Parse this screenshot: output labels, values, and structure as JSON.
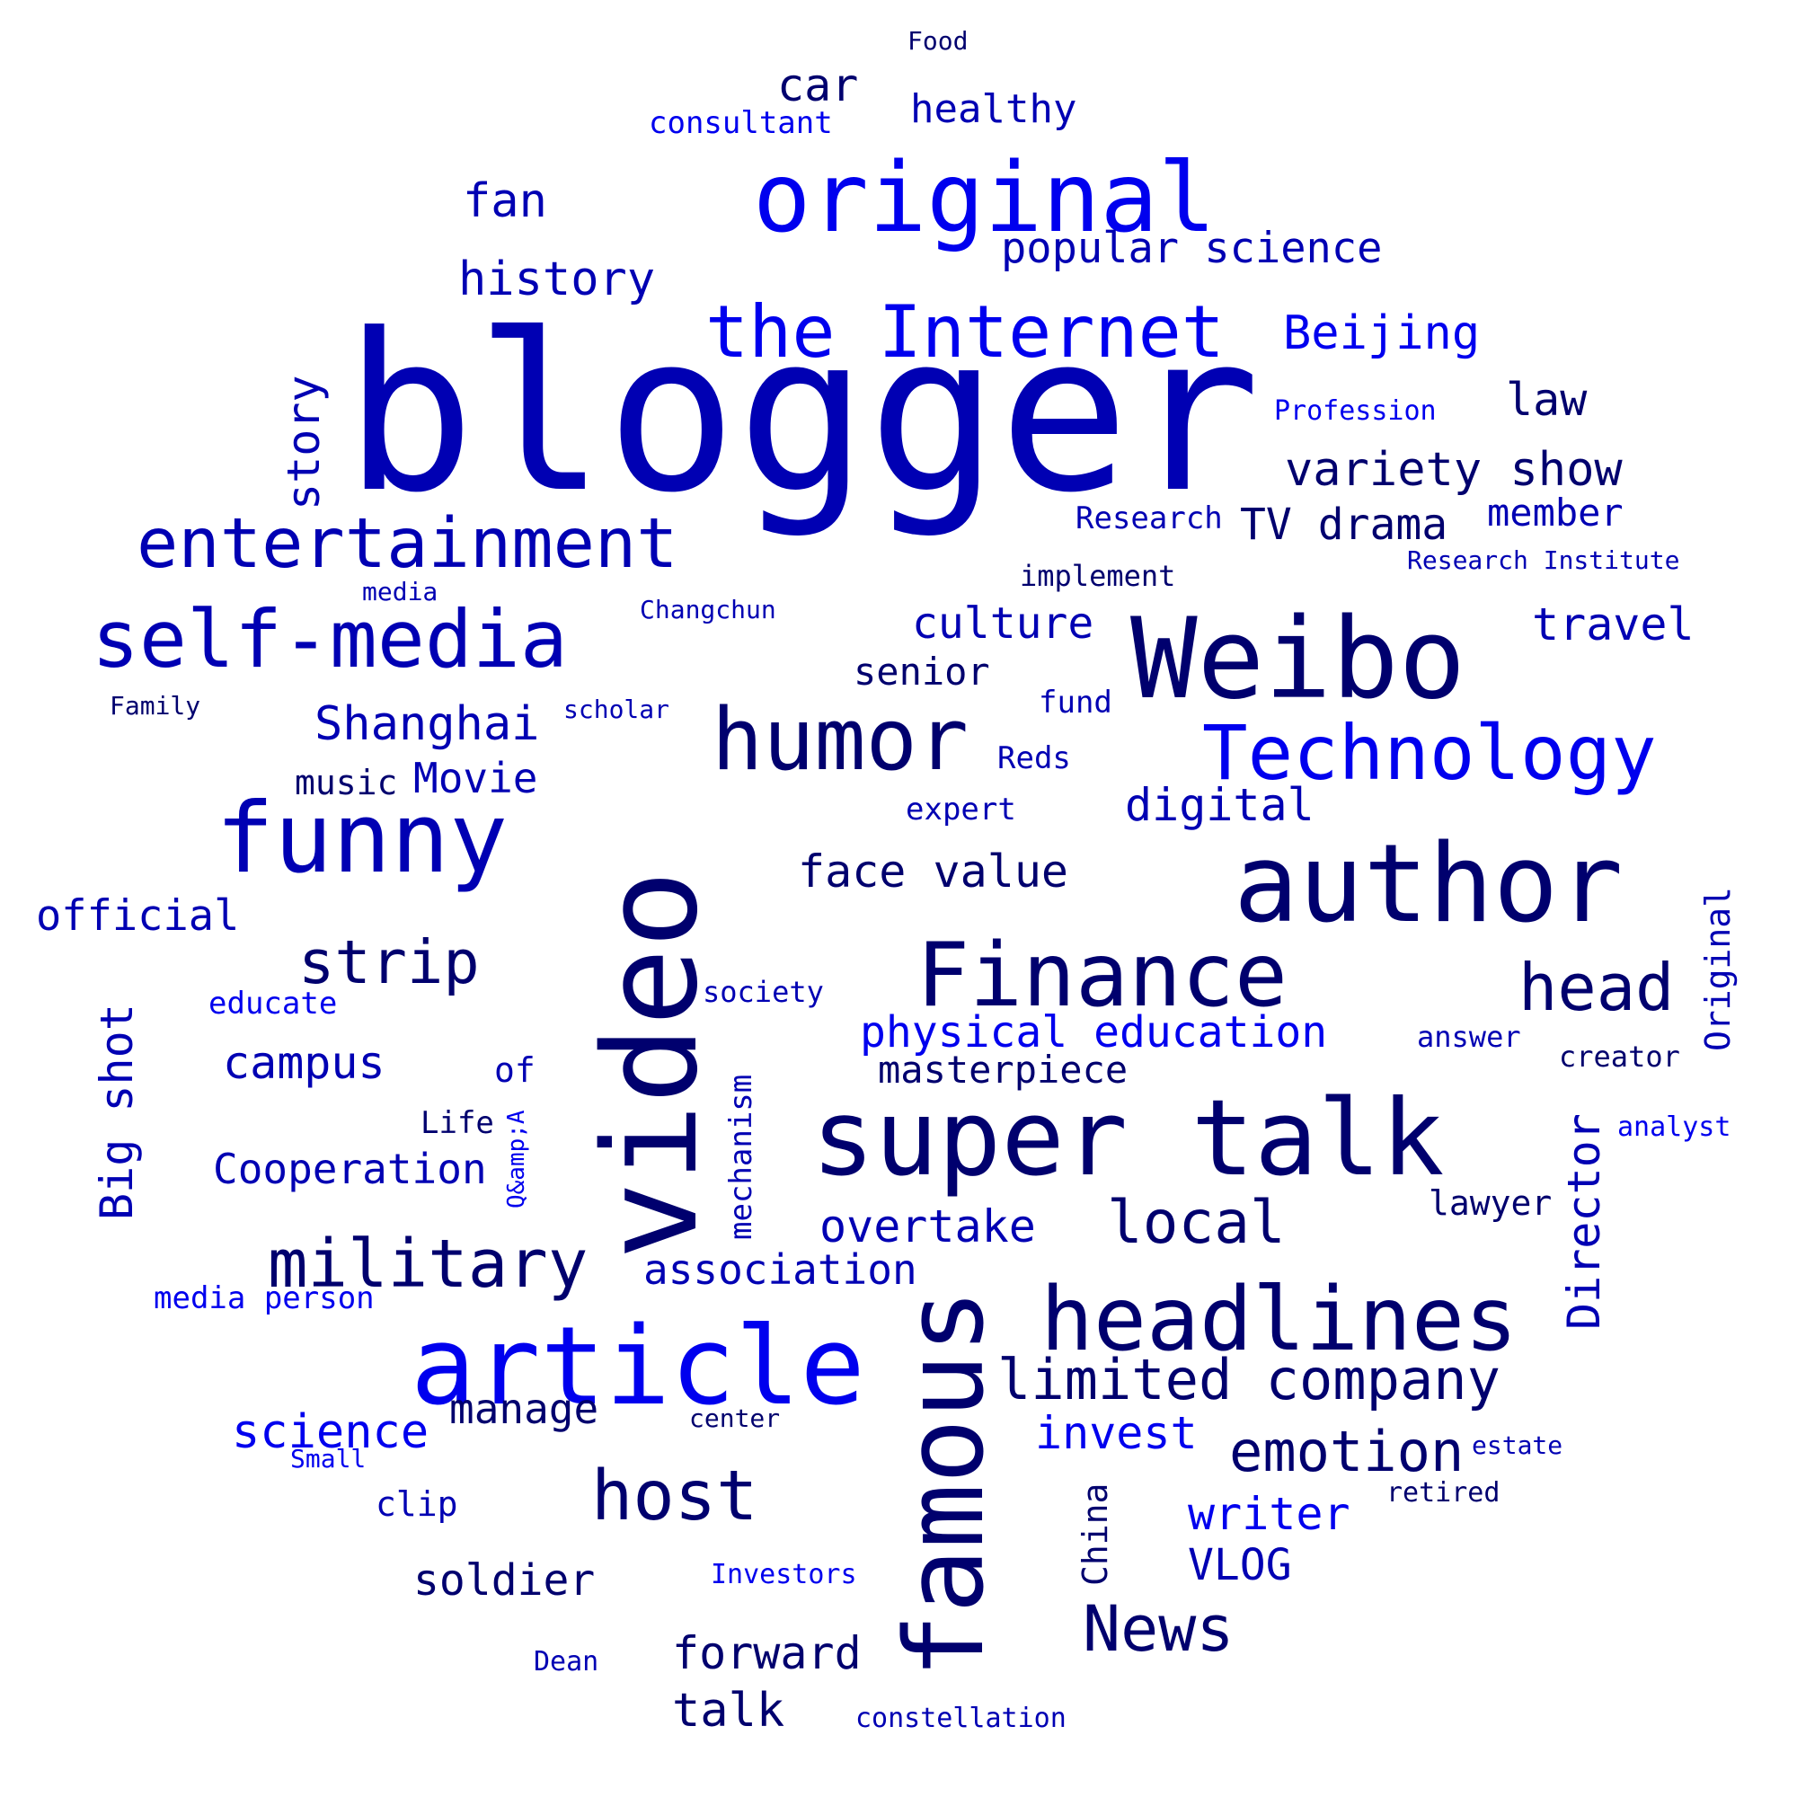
{
  "colors": {
    "navy": "#00006e",
    "dark_blue": "#0000b3",
    "blue": "#0000ee"
  },
  "words": {
    "blogger": "blogger",
    "original": "original",
    "the_internet": "the Internet",
    "weibo": "Weibo",
    "video": "video",
    "author": "author",
    "super_talk": "super talk",
    "famous": "famous",
    "article": "article",
    "headlines": "headlines",
    "finance": "Finance",
    "funny": "funny",
    "humor": "humor",
    "technology": "Technology",
    "self_media": "self-media",
    "entertainment": "entertainment",
    "military": "military",
    "host": "host",
    "limited_company": "limited company",
    "strip": "strip",
    "head": "head",
    "news": "News",
    "local": "local",
    "emotion": "emotion",
    "beijing": "Beijing",
    "popular_science": "popular science",
    "history": "history",
    "car": "car",
    "healthy": "healthy",
    "fan": "fan",
    "consultant": "consultant",
    "food": "Food",
    "story": "story",
    "law": "law",
    "profession": "Profession",
    "variety_show": "variety show",
    "member": "member",
    "research": "Research",
    "tv_drama": "TV drama",
    "research_institute": "Research Institute",
    "implement": "implement",
    "media": "media",
    "changchun": "Changchun",
    "culture": "culture",
    "travel": "travel",
    "senior": "senior",
    "family": "Family",
    "scholar": "scholar",
    "shanghai": "Shanghai",
    "fund": "fund",
    "reds": "Reds",
    "music": "music",
    "movie": "Movie",
    "digital": "digital",
    "expert": "expert",
    "face_value": "face value",
    "official": "official",
    "original_small": "Original",
    "big_shot": "Big shot",
    "educate": "educate",
    "society": "society",
    "physical_education": "physical education",
    "answer": "answer",
    "creator": "creator",
    "campus": "campus",
    "of": "of",
    "mechanism": "mechanism",
    "masterpiece": "masterpiece",
    "life": "Life",
    "qa": "Q&amp;A",
    "director": "Director",
    "analyst": "analyst",
    "cooperation": "Cooperation",
    "overtake": "overtake",
    "lawyer": "lawyer",
    "association": "association",
    "media_person": "media person",
    "science": "science",
    "manage": "manage",
    "center": "center",
    "invest": "invest",
    "small": "Small",
    "estate": "estate",
    "clip": "clip",
    "retired": "retired",
    "china": "China",
    "writer": "writer",
    "vlog": "VLOG",
    "soldier": "soldier",
    "investors": "Investors",
    "forward": "forward",
    "dean": "Dean",
    "talk": "talk",
    "constellation": "constellation"
  }
}
